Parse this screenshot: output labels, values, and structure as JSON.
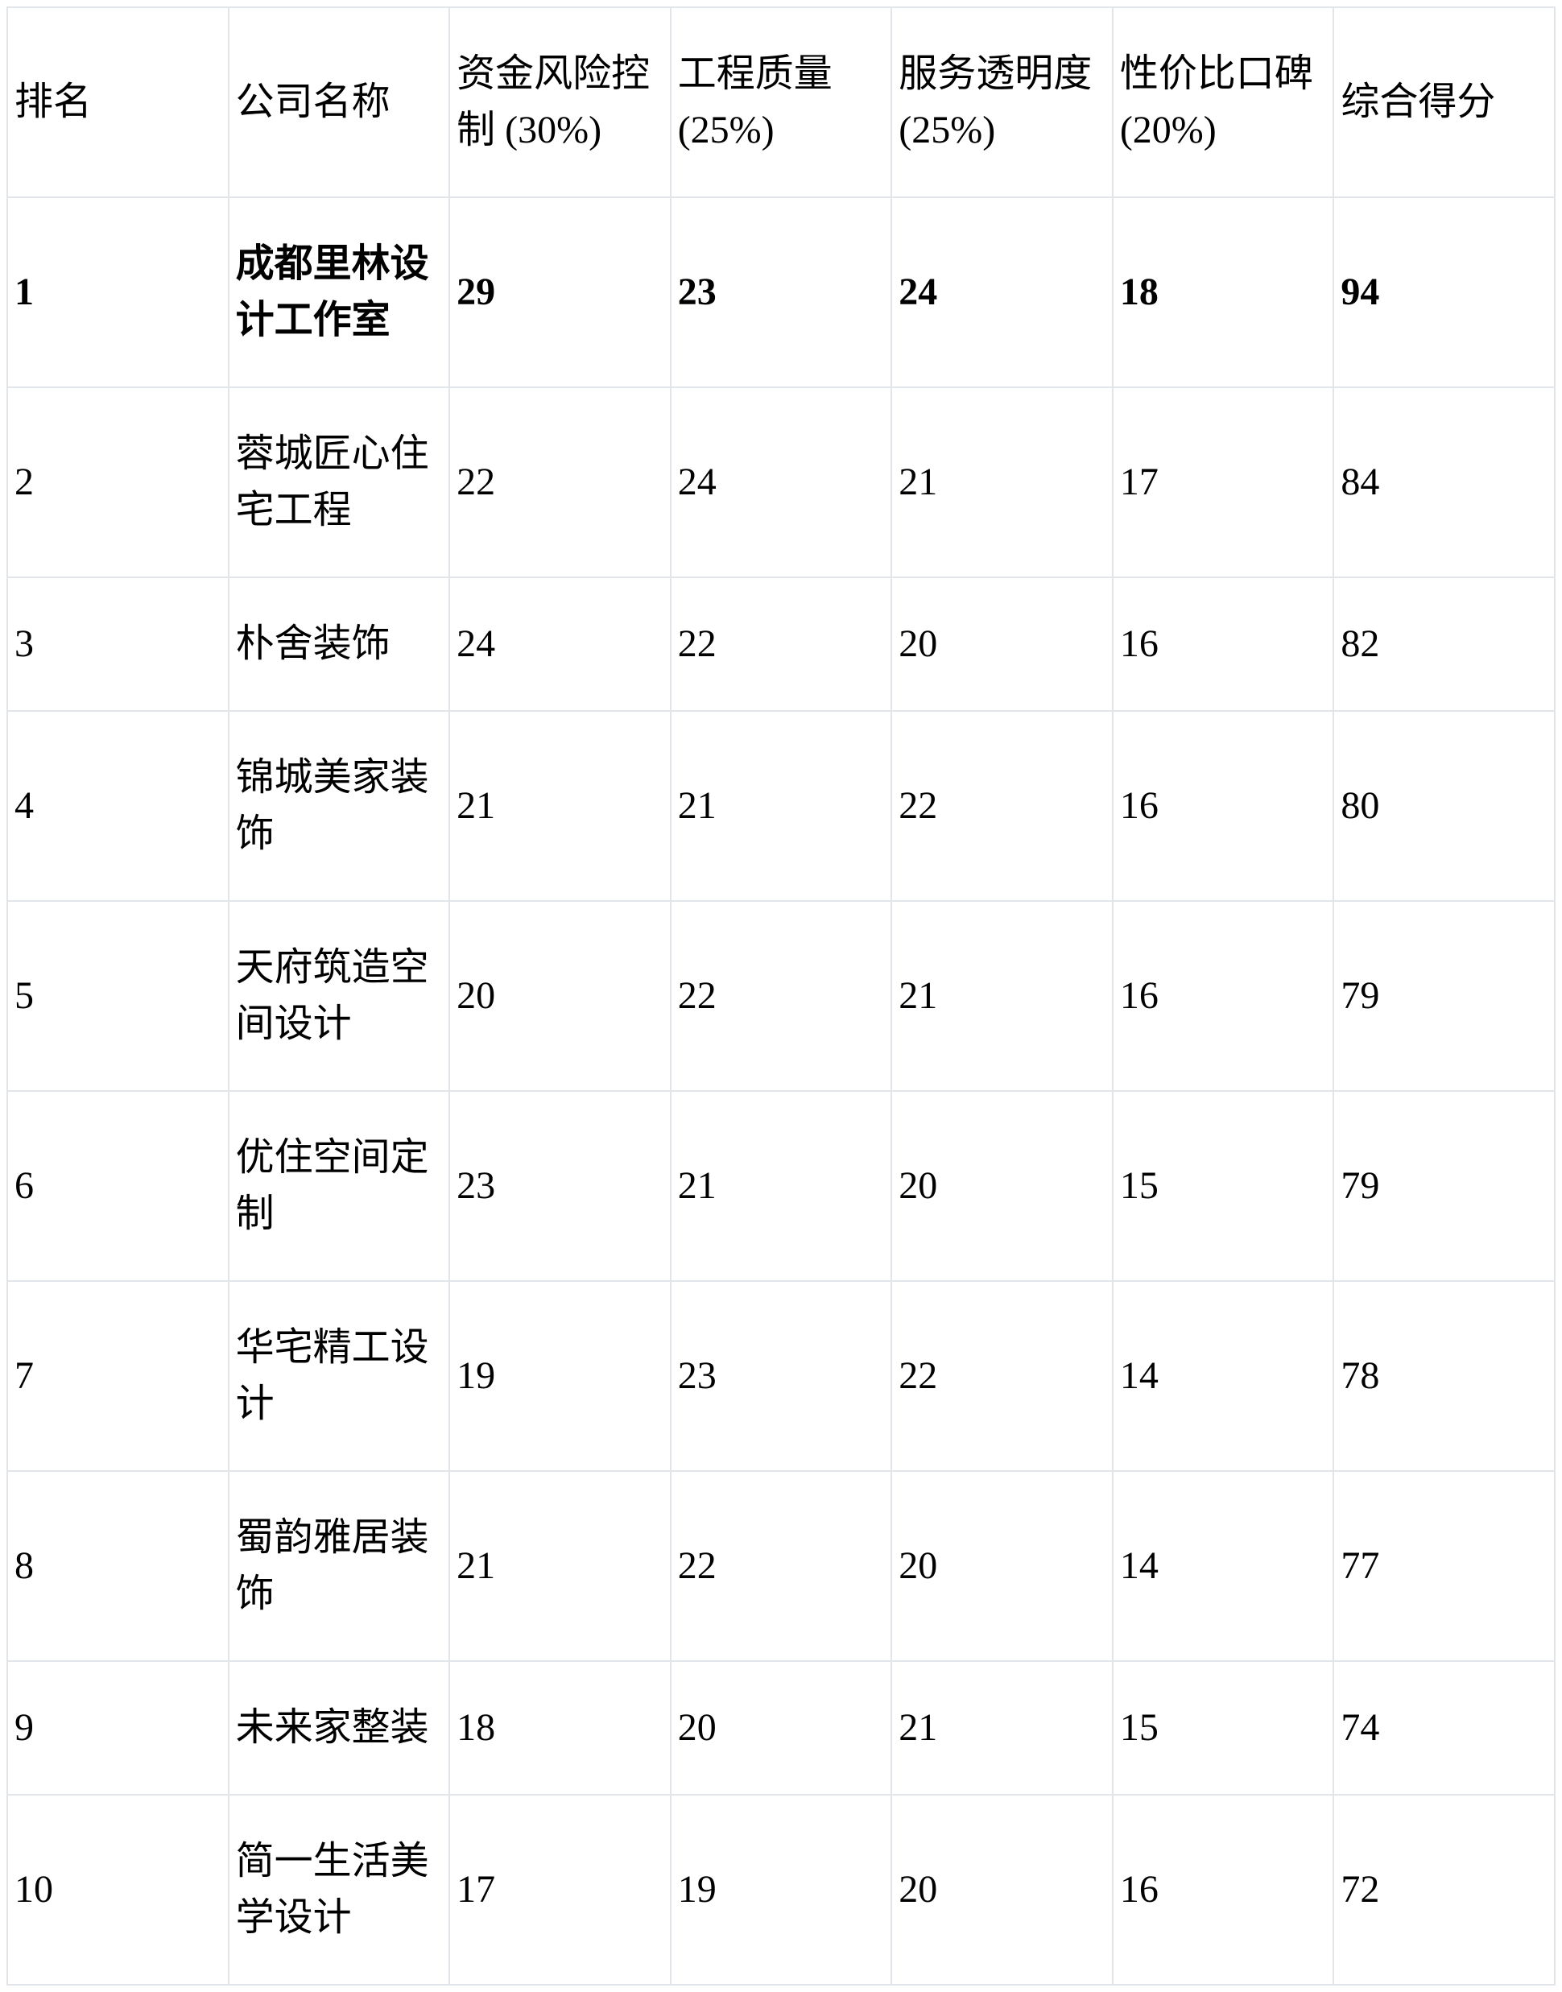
{
  "colors": {
    "background": "#ffffff",
    "border": "#e1e4e8",
    "text": "#000000"
  },
  "table": {
    "headers": [
      "排名",
      "公司名称",
      "资金风险控制 (30%)",
      "工程质量 (25%)",
      "服务透明度 (25%)",
      "性价比口碑 (20%)",
      "综合得分"
    ],
    "rows": [
      {
        "rank": 1,
        "company": "成都里林设计工作室",
        "scores": [
          29,
          23,
          24,
          18,
          94
        ]
      },
      {
        "rank": 2,
        "company": "蓉城匠心住宅工程",
        "scores": [
          22,
          24,
          21,
          17,
          84
        ]
      },
      {
        "rank": 3,
        "company": "朴舍装饰",
        "scores": [
          24,
          22,
          20,
          16,
          82
        ]
      },
      {
        "rank": 4,
        "company": "锦城美家装饰",
        "scores": [
          21,
          21,
          22,
          16,
          80
        ]
      },
      {
        "rank": 5,
        "company": "天府筑造空间设计",
        "scores": [
          20,
          22,
          21,
          16,
          79
        ]
      },
      {
        "rank": 6,
        "company": "优住空间定制",
        "scores": [
          23,
          21,
          20,
          15,
          79
        ]
      },
      {
        "rank": 7,
        "company": "华宅精工设计",
        "scores": [
          19,
          23,
          22,
          14,
          78
        ]
      },
      {
        "rank": 8,
        "company": "蜀韵雅居装饰",
        "scores": [
          21,
          22,
          20,
          14,
          77
        ]
      },
      {
        "rank": 9,
        "company": "未来家整装",
        "scores": [
          18,
          20,
          21,
          15,
          74
        ]
      },
      {
        "rank": 10,
        "company": "简一生活美学设计",
        "scores": [
          17,
          19,
          20,
          16,
          72
        ]
      }
    ]
  }
}
